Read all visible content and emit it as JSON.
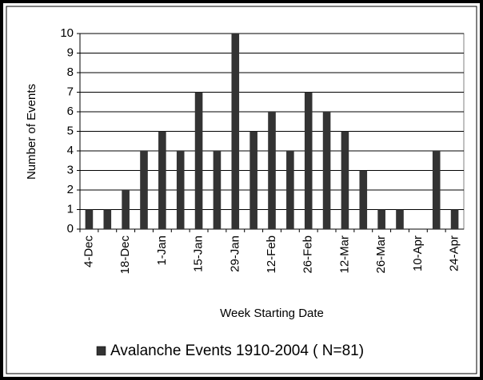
{
  "chart_data": {
    "type": "bar",
    "x_label": "Week Starting Date",
    "y_label": "Number of Events",
    "categories": [
      "4-Dec",
      null,
      "18-Dec",
      null,
      "1-Jan",
      null,
      "15-Jan",
      null,
      "29-Jan",
      null,
      "12-Feb",
      null,
      "26-Feb",
      null,
      "12-Mar",
      null,
      "26-Mar",
      null,
      "10-Apr",
      null,
      "24-Apr"
    ],
    "series": [
      {
        "name": "Avalanche Events 1910-2004 ( N=81)",
        "color": "#333333",
        "values": [
          1,
          1,
          2,
          4,
          5,
          4,
          7,
          4,
          10,
          5,
          6,
          4,
          7,
          6,
          5,
          3,
          1,
          1,
          0,
          4,
          1
        ]
      }
    ],
    "ylim": [
      0,
      10
    ],
    "yticks": [
      0,
      1,
      2,
      3,
      4,
      5,
      6,
      7,
      8,
      9,
      10
    ],
    "grid": true,
    "legend": "bottom"
  }
}
